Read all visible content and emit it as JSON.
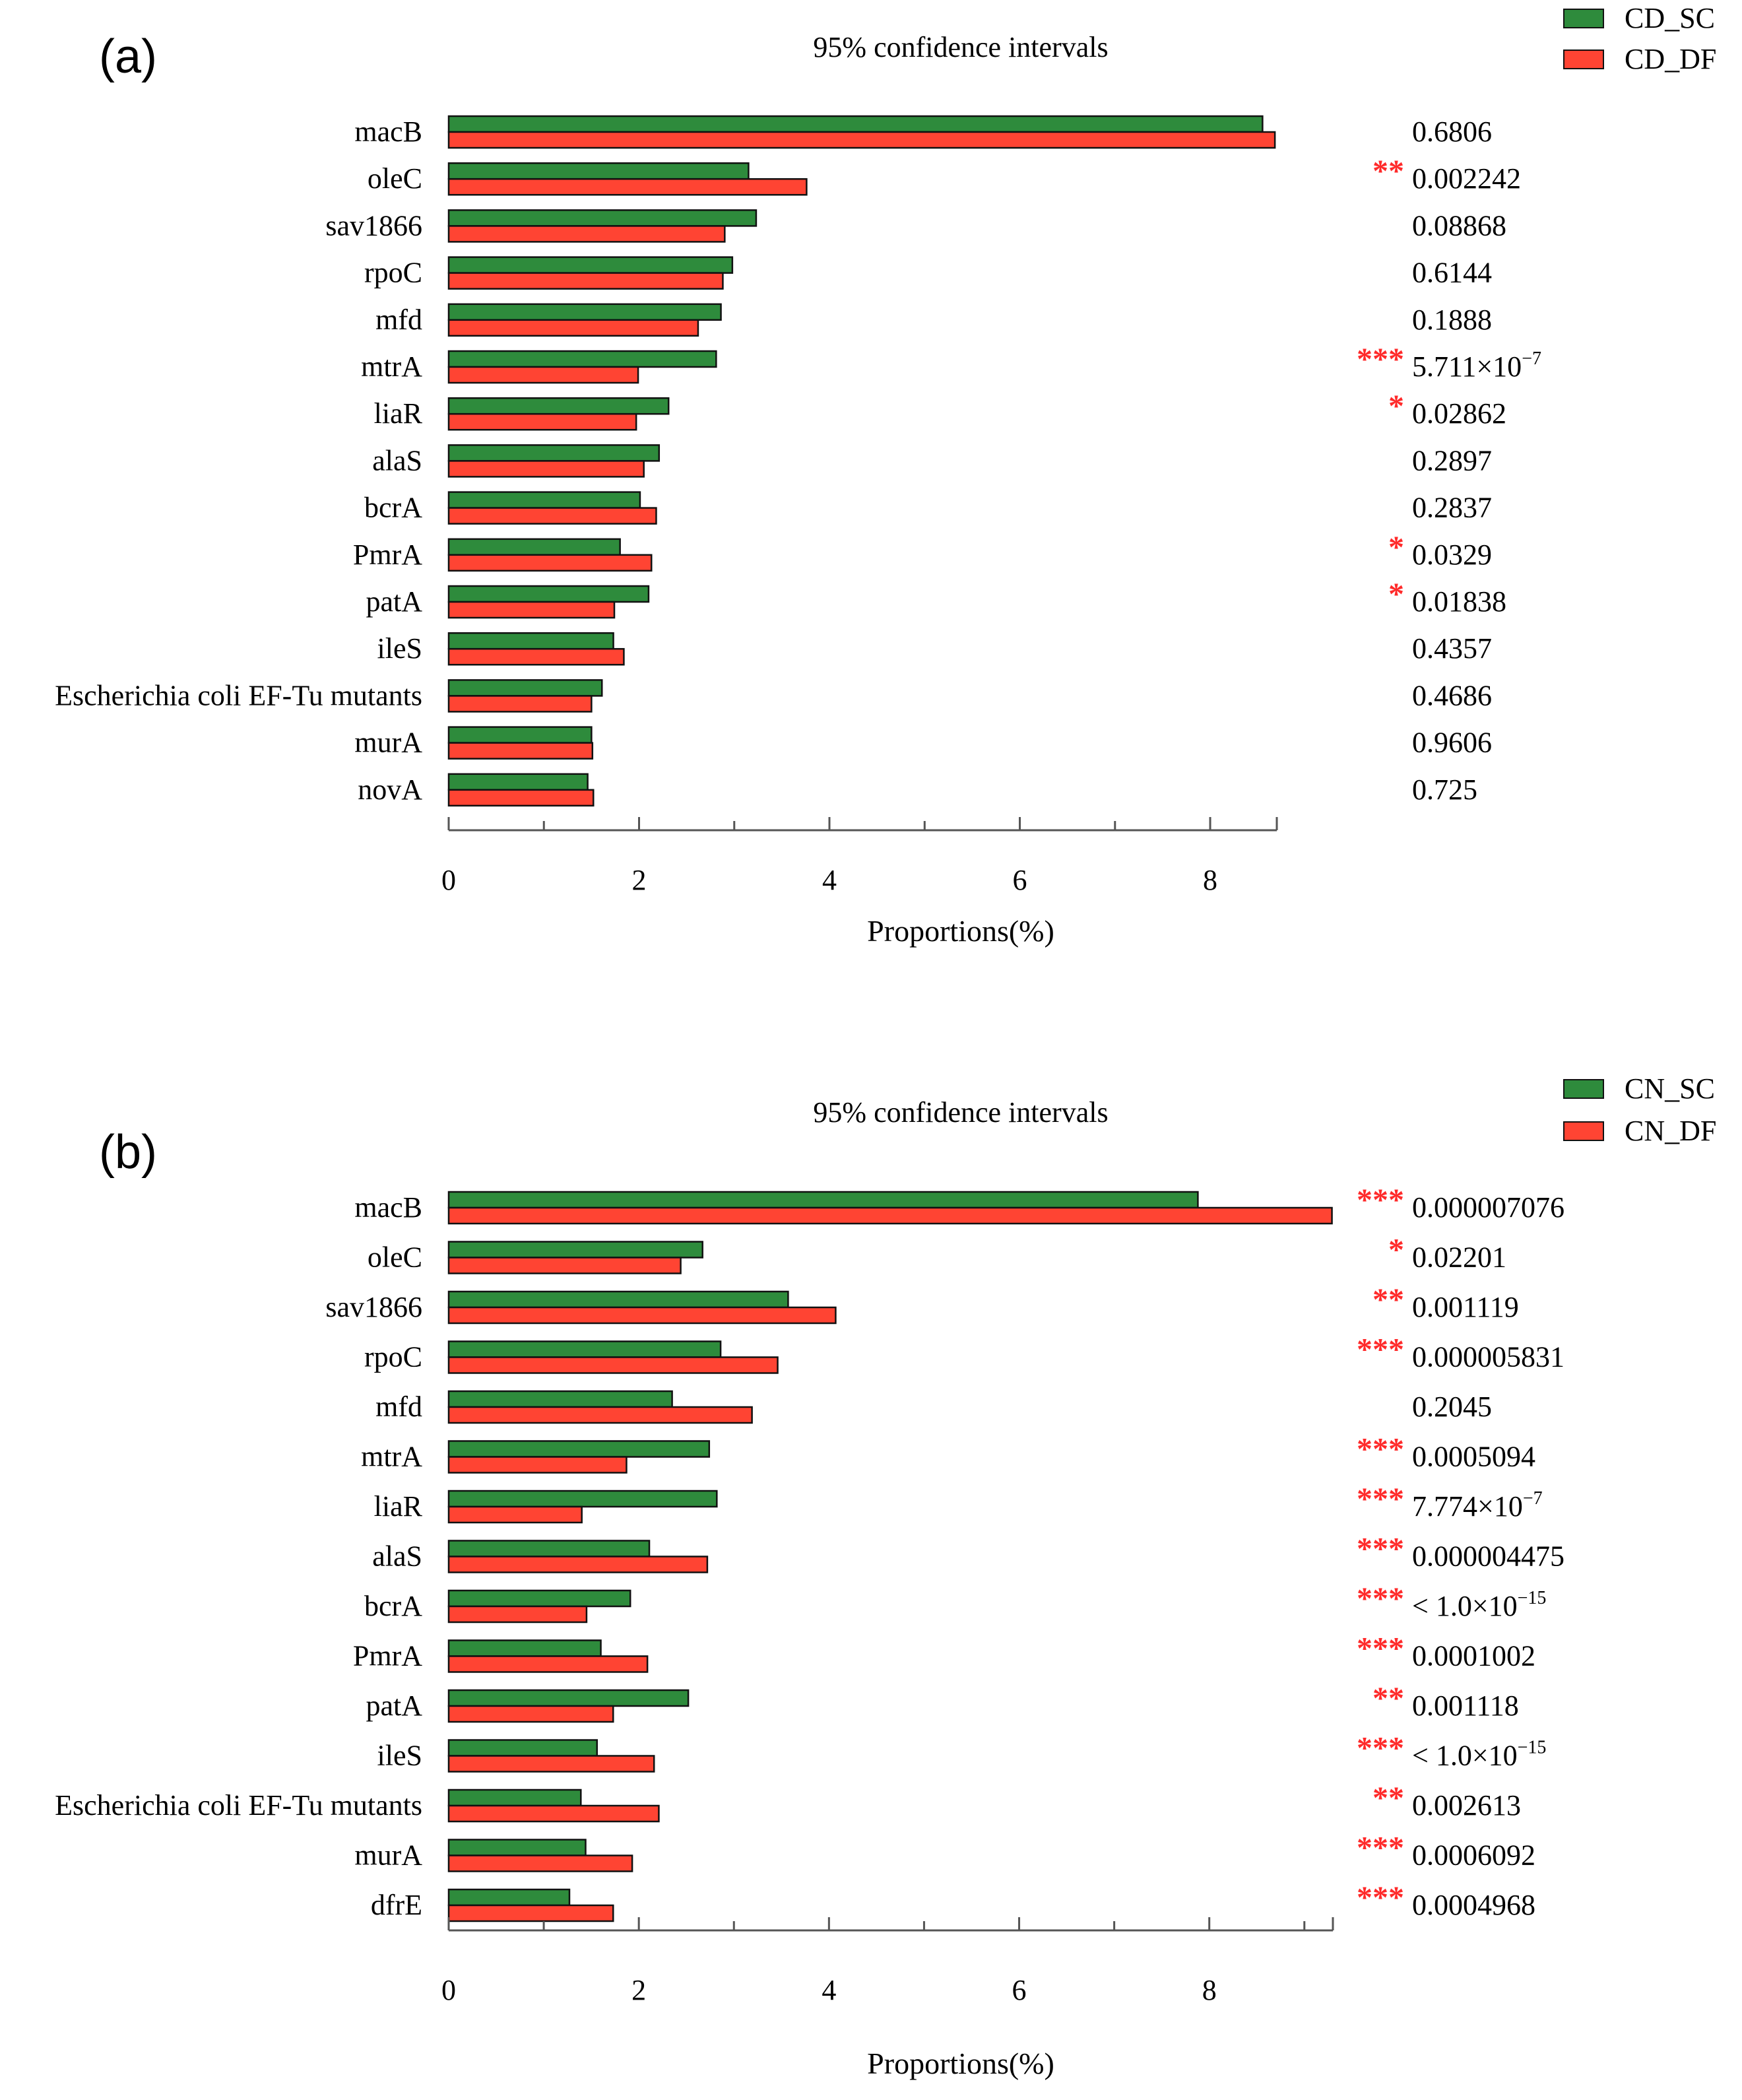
{
  "colors": {
    "sc": "#2e8b3c",
    "df": "#ff4433",
    "star": "#ff2a2a",
    "axis": "#555555"
  },
  "chart_data": [
    {
      "type": "bar",
      "panel_label": "(a)",
      "title": "95% confidence intervals",
      "xlabel": "Proportions(%)",
      "xlim": [
        0,
        8.7
      ],
      "xticks": [
        0,
        2,
        4,
        6,
        8
      ],
      "legend_position": "top-right",
      "categories": [
        "macB",
        "oleC",
        "sav1866",
        "rpoC",
        "mfd",
        "mtrA",
        "liaR",
        "alaS",
        "bcrA",
        "PmrA",
        "patA",
        "ileS",
        "Escherichia coli EF-Tu mutants",
        "murA",
        "novA"
      ],
      "series": [
        {
          "name": "CD_SC",
          "values": [
            8.55,
            3.15,
            3.23,
            2.98,
            2.86,
            2.81,
            2.31,
            2.21,
            2.01,
            1.8,
            2.1,
            1.73,
            1.61,
            1.5,
            1.46
          ]
        },
        {
          "name": "CD_DF",
          "values": [
            8.68,
            3.76,
            2.9,
            2.88,
            2.62,
            1.99,
            1.97,
            2.05,
            2.18,
            2.13,
            1.74,
            1.84,
            1.5,
            1.51,
            1.52
          ]
        }
      ],
      "pvalues": [
        {
          "stars": "",
          "text": "0.6806"
        },
        {
          "stars": "**",
          "text": "0.002242"
        },
        {
          "stars": "",
          "text": "0.08868"
        },
        {
          "stars": "",
          "text": "0.6144"
        },
        {
          "stars": "",
          "text": "0.1888"
        },
        {
          "stars": "***",
          "text": "5.711×10",
          "exp": "−7"
        },
        {
          "stars": "*",
          "text": "0.02862"
        },
        {
          "stars": "",
          "text": "0.2897"
        },
        {
          "stars": "",
          "text": "0.2837"
        },
        {
          "stars": "*",
          "text": "0.0329"
        },
        {
          "stars": "*",
          "text": "0.01838"
        },
        {
          "stars": "",
          "text": "0.4357"
        },
        {
          "stars": "",
          "text": "0.4686"
        },
        {
          "stars": "",
          "text": "0.9606"
        },
        {
          "stars": "",
          "text": "0.725"
        }
      ]
    },
    {
      "type": "bar",
      "panel_label": "(b)",
      "title": "95% confidence intervals",
      "xlabel": "Proportions(%)",
      "xlim": [
        0,
        9.3
      ],
      "xticks": [
        0,
        2,
        4,
        6,
        8
      ],
      "legend_position": "top-right",
      "categories": [
        "macB",
        "oleC",
        "sav1866",
        "rpoC",
        "mfd",
        "mtrA",
        "liaR",
        "alaS",
        "bcrA",
        "PmrA",
        "patA",
        "ileS",
        "Escherichia coli EF-Tu mutants",
        "murA",
        "dfrE"
      ],
      "series": [
        {
          "name": "CN_SC",
          "values": [
            7.88,
            2.67,
            3.57,
            2.86,
            2.35,
            2.74,
            2.82,
            2.11,
            1.91,
            1.6,
            2.52,
            1.56,
            1.39,
            1.44,
            1.27
          ]
        },
        {
          "name": "CN_DF",
          "values": [
            9.29,
            2.44,
            4.07,
            3.46,
            3.19,
            1.87,
            1.4,
            2.72,
            1.45,
            2.09,
            1.73,
            2.16,
            2.21,
            1.93,
            1.73
          ]
        }
      ],
      "pvalues": [
        {
          "stars": "***",
          "text": "0.000007076"
        },
        {
          "stars": "*",
          "text": "0.02201"
        },
        {
          "stars": "**",
          "text": "0.001119"
        },
        {
          "stars": "***",
          "text": "0.000005831"
        },
        {
          "stars": "",
          "text": "0.2045"
        },
        {
          "stars": "***",
          "text": "0.0005094"
        },
        {
          "stars": "***",
          "text": "7.774×10",
          "exp": "−7"
        },
        {
          "stars": "***",
          "text": "0.000004475"
        },
        {
          "stars": "***",
          "text": "< 1.0×10",
          "exp": "−15"
        },
        {
          "stars": "***",
          "text": "0.0001002"
        },
        {
          "stars": "**",
          "text": "0.001118"
        },
        {
          "stars": "***",
          "text": "< 1.0×10",
          "exp": "−15"
        },
        {
          "stars": "**",
          "text": "0.002613"
        },
        {
          "stars": "***",
          "text": "0.0006092"
        },
        {
          "stars": "***",
          "text": "0.0004968"
        }
      ]
    }
  ]
}
